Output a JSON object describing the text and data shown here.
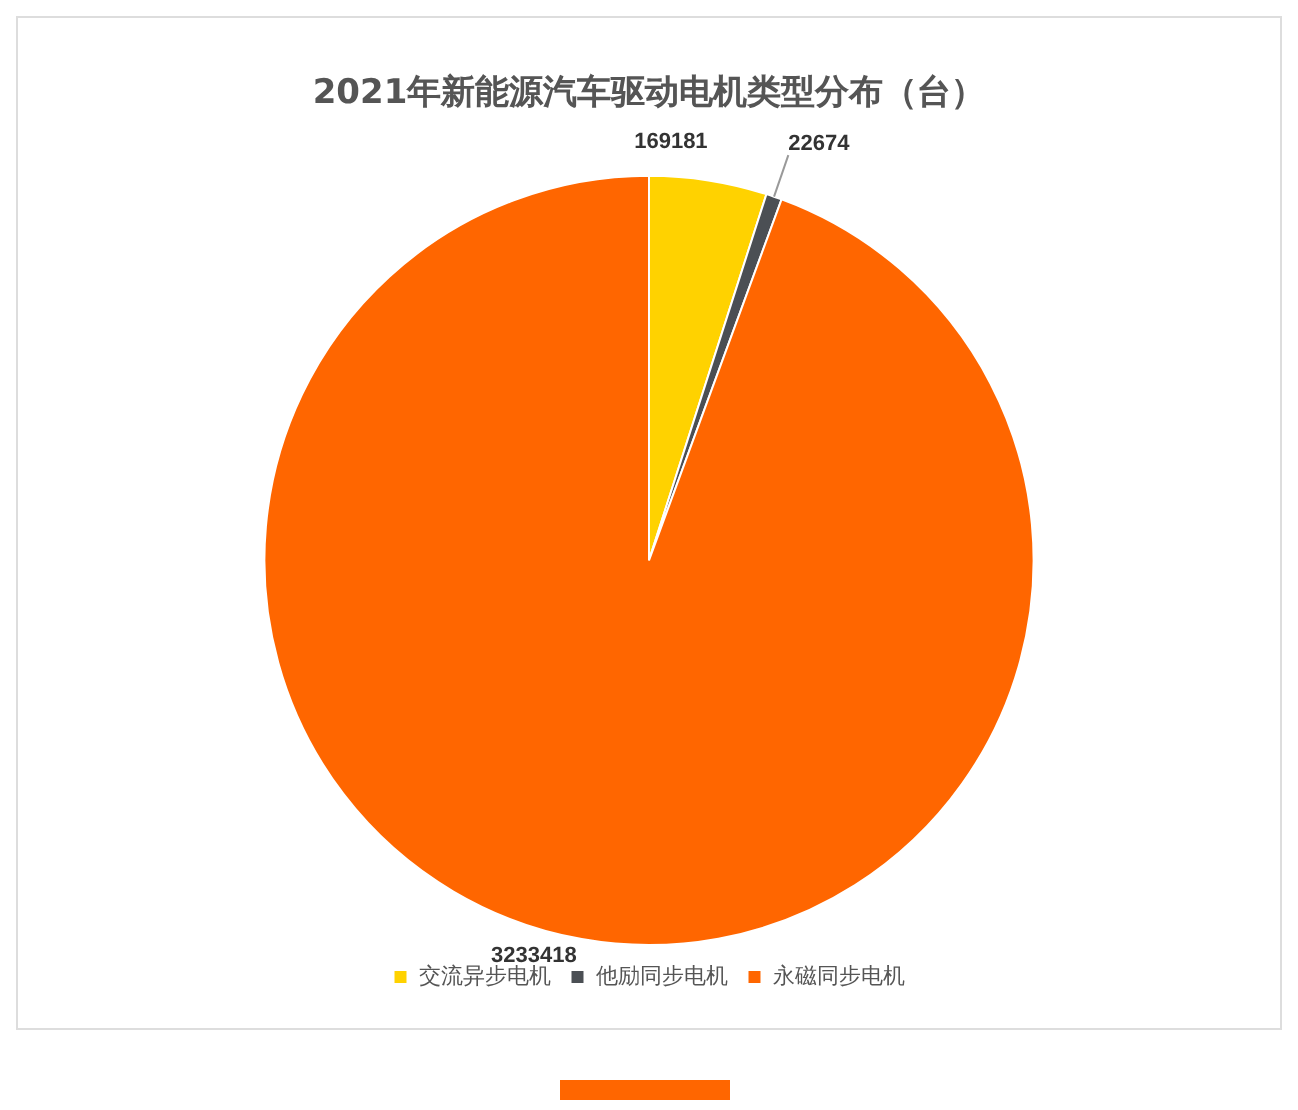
{
  "chart_data": {
    "type": "pie",
    "title": "2021年新能源汽车驱动电机类型分布（台）",
    "categories": [
      "交流异步电机",
      "他励同步电机",
      "永磁同步电机"
    ],
    "values": [
      169181,
      22674,
      3233418
    ],
    "colors": [
      "#ffd200",
      "#4b4f54",
      "#ff6600"
    ],
    "data_labels": true,
    "legend": "bottom"
  }
}
